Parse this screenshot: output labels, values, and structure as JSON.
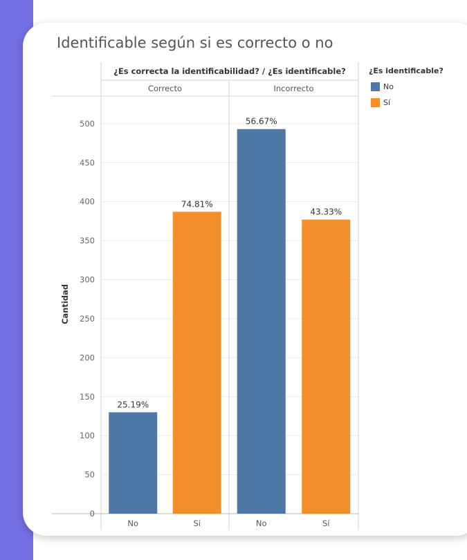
{
  "page": {
    "title": "Identificable según si es correcto o no"
  },
  "legend": {
    "title": "¿Es identificable?",
    "items": [
      {
        "label": "No",
        "color": "#4e79a7"
      },
      {
        "label": "Sí",
        "color": "#f28e2b"
      }
    ]
  },
  "chart_data": {
    "type": "bar",
    "column_header": "¿Es correcta la identificabilidad? / ¿Es identificable?",
    "panels": [
      {
        "name": "Correcto",
        "categories": [
          "No",
          "Sí"
        ],
        "values": [
          130,
          387
        ],
        "labels": [
          "25.19%",
          "74.81%"
        ]
      },
      {
        "name": "Incorrecto",
        "categories": [
          "No",
          "Sí"
        ],
        "values": [
          493,
          377
        ],
        "labels": [
          "56.67%",
          "43.33%"
        ]
      }
    ],
    "colors": {
      "No": "#4e79a7",
      "Sí": "#f28e2b"
    },
    "ylabel": "Cantidad",
    "ylim": [
      0,
      530
    ],
    "yticks": [
      0,
      50,
      100,
      150,
      200,
      250,
      300,
      350,
      400,
      450,
      500
    ],
    "grid": true
  }
}
